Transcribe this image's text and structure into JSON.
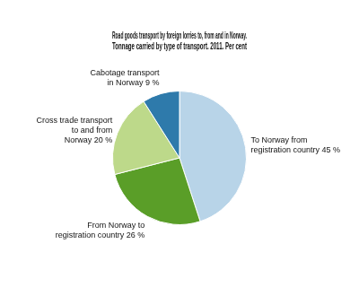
{
  "chart_data": {
    "type": "pie",
    "title": [
      "Road goods transport by foreign lorries to, from and in Norway.",
      "Tonnage carried by type of transport. 2011. Per cent"
    ],
    "categories": [
      "To Norway from\nregistration country 45 %",
      "From Norway to\nregistration country 26 %",
      "Cross trade transport\nto and from\nNorway 20 %",
      "Cabotage transport\nin Norway 9 %"
    ],
    "values": [
      45,
      26,
      20,
      9
    ],
    "colors": [
      "#b8d4e8",
      "#5a9e28",
      "#bdd98a",
      "#2e7aab"
    ]
  }
}
